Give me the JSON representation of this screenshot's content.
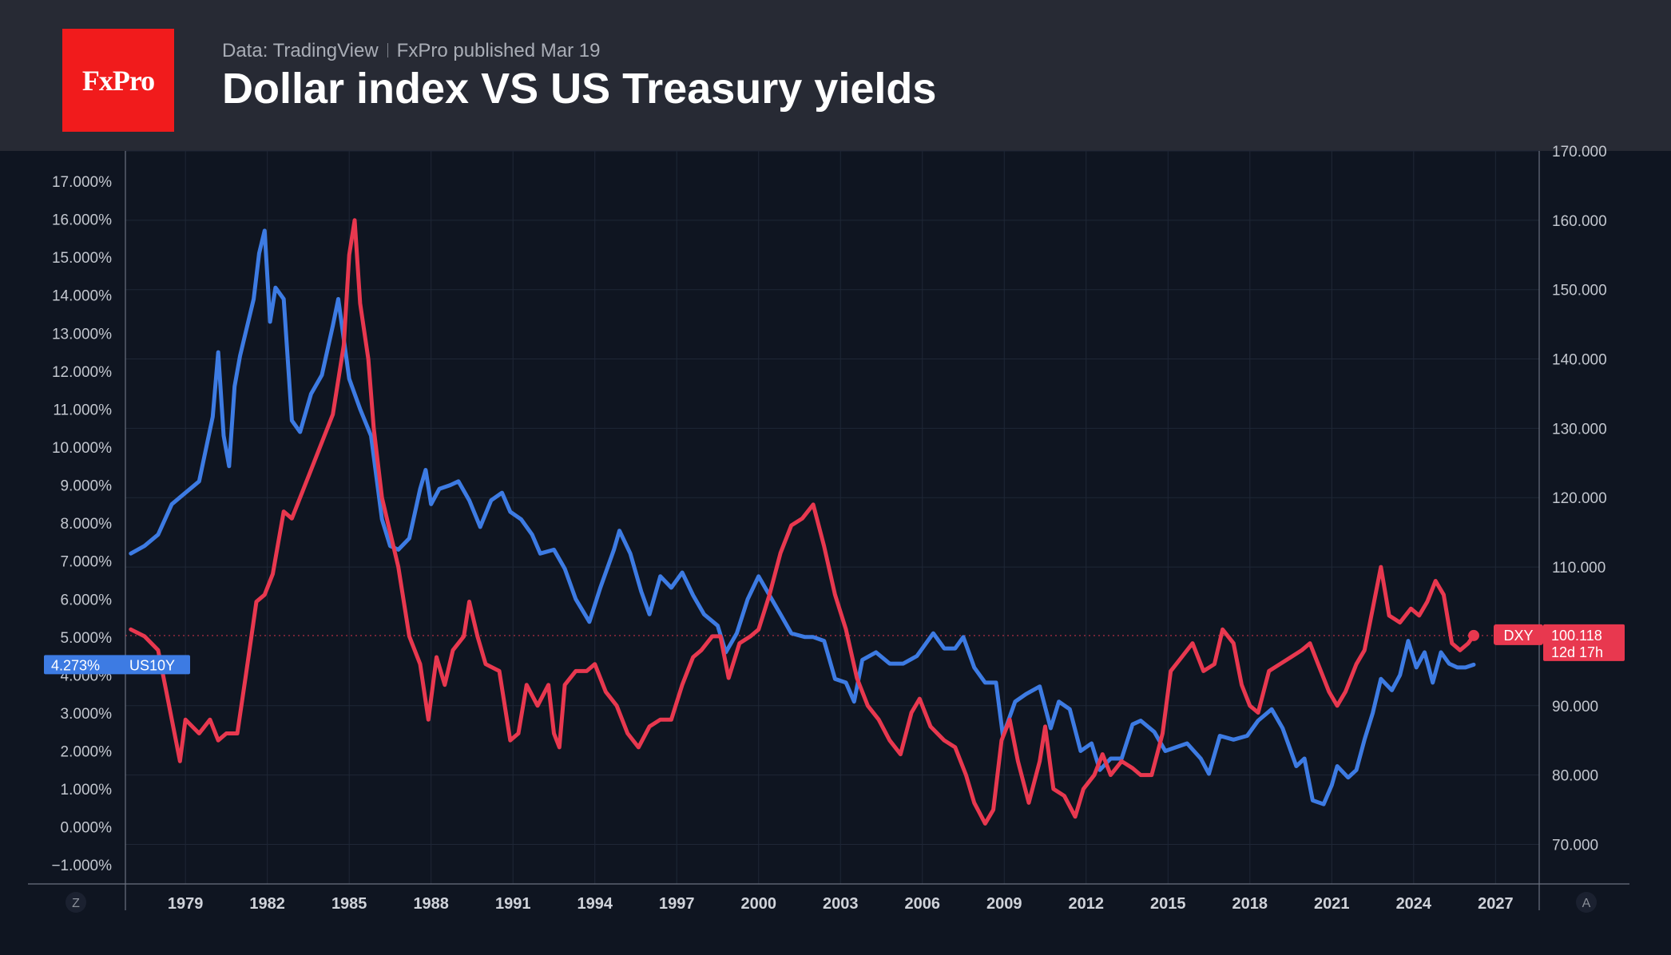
{
  "header": {
    "logo_text": "FxPro",
    "source": "Data: TradingView",
    "published": "FxPro published Mar 19",
    "title": "Dollar index VS US Treasury yields"
  },
  "colors": {
    "background": "#0f1521",
    "header_bg": "#272a34",
    "logo_red": "#f11b1c",
    "us10y_blue": "#3d7be3",
    "dxy_red": "#e8384f"
  },
  "chart_data": {
    "type": "line",
    "x_ticks": [
      "1979",
      "1982",
      "1985",
      "1988",
      "1991",
      "1994",
      "1997",
      "2000",
      "2003",
      "2006",
      "2009",
      "2012",
      "2015",
      "2018",
      "2021",
      "2024",
      "2027"
    ],
    "left_axis": {
      "ticks": [
        "17.000%",
        "16.000%",
        "15.000%",
        "14.000%",
        "13.000%",
        "12.000%",
        "11.000%",
        "10.000%",
        "9.000%",
        "8.000%",
        "7.000%",
        "6.000%",
        "5.000%",
        "4.000%",
        "3.000%",
        "2.000%",
        "1.000%",
        "0.000%",
        "−1.000%"
      ],
      "range": [
        -1.5,
        17.8
      ]
    },
    "right_axis": {
      "ticks": [
        "170.000",
        "160.000",
        "150.000",
        "140.000",
        "130.000",
        "120.000",
        "110.000",
        "90.000",
        "80.000",
        "70.000"
      ],
      "range": [
        64.3,
        170
      ]
    },
    "grid": true,
    "series": [
      {
        "name": "US10Y",
        "axis": "left",
        "color": "#3d7be3",
        "last_label": "4.273%",
        "points": [
          [
            1977.0,
            7.2
          ],
          [
            1977.5,
            7.4
          ],
          [
            1978.0,
            7.7
          ],
          [
            1978.5,
            8.5
          ],
          [
            1979.0,
            8.8
          ],
          [
            1979.5,
            9.1
          ],
          [
            1980.0,
            10.8
          ],
          [
            1980.2,
            12.5
          ],
          [
            1980.4,
            10.3
          ],
          [
            1980.6,
            9.5
          ],
          [
            1980.8,
            11.6
          ],
          [
            1981.0,
            12.4
          ],
          [
            1981.5,
            13.9
          ],
          [
            1981.7,
            15.1
          ],
          [
            1981.9,
            15.7
          ],
          [
            1982.1,
            13.3
          ],
          [
            1982.3,
            14.2
          ],
          [
            1982.6,
            13.9
          ],
          [
            1982.9,
            10.7
          ],
          [
            1983.2,
            10.4
          ],
          [
            1983.6,
            11.4
          ],
          [
            1984.0,
            11.9
          ],
          [
            1984.4,
            13.2
          ],
          [
            1984.6,
            13.9
          ],
          [
            1985.0,
            11.8
          ],
          [
            1985.4,
            11.0
          ],
          [
            1985.8,
            10.3
          ],
          [
            1986.2,
            8.1
          ],
          [
            1986.5,
            7.4
          ],
          [
            1986.8,
            7.3
          ],
          [
            1987.2,
            7.6
          ],
          [
            1987.6,
            8.9
          ],
          [
            1987.8,
            9.4
          ],
          [
            1988.0,
            8.5
          ],
          [
            1988.3,
            8.9
          ],
          [
            1988.7,
            9.0
          ],
          [
            1989.0,
            9.1
          ],
          [
            1989.4,
            8.6
          ],
          [
            1989.8,
            7.9
          ],
          [
            1990.2,
            8.6
          ],
          [
            1990.6,
            8.8
          ],
          [
            1990.9,
            8.3
          ],
          [
            1991.3,
            8.1
          ],
          [
            1991.7,
            7.7
          ],
          [
            1992.0,
            7.2
          ],
          [
            1992.5,
            7.3
          ],
          [
            1992.9,
            6.8
          ],
          [
            1993.3,
            6.0
          ],
          [
            1993.8,
            5.4
          ],
          [
            1994.2,
            6.3
          ],
          [
            1994.7,
            7.3
          ],
          [
            1994.9,
            7.8
          ],
          [
            1995.3,
            7.2
          ],
          [
            1995.7,
            6.2
          ],
          [
            1996.0,
            5.6
          ],
          [
            1996.4,
            6.6
          ],
          [
            1996.8,
            6.3
          ],
          [
            1997.2,
            6.7
          ],
          [
            1997.6,
            6.1
          ],
          [
            1998.0,
            5.6
          ],
          [
            1998.5,
            5.3
          ],
          [
            1998.8,
            4.6
          ],
          [
            1999.2,
            5.1
          ],
          [
            1999.6,
            6.0
          ],
          [
            2000.0,
            6.6
          ],
          [
            2000.4,
            6.1
          ],
          [
            2000.8,
            5.6
          ],
          [
            2001.2,
            5.1
          ],
          [
            2001.7,
            5.0
          ],
          [
            2002.0,
            5.0
          ],
          [
            2002.4,
            4.9
          ],
          [
            2002.8,
            3.9
          ],
          [
            2003.2,
            3.8
          ],
          [
            2003.5,
            3.3
          ],
          [
            2003.8,
            4.4
          ],
          [
            2004.3,
            4.6
          ],
          [
            2004.8,
            4.3
          ],
          [
            2005.3,
            4.3
          ],
          [
            2005.8,
            4.5
          ],
          [
            2006.4,
            5.1
          ],
          [
            2006.8,
            4.7
          ],
          [
            2007.2,
            4.7
          ],
          [
            2007.5,
            5.0
          ],
          [
            2007.9,
            4.2
          ],
          [
            2008.3,
            3.8
          ],
          [
            2008.7,
            3.8
          ],
          [
            2008.95,
            2.4
          ],
          [
            2009.4,
            3.3
          ],
          [
            2009.8,
            3.5
          ],
          [
            2010.3,
            3.7
          ],
          [
            2010.7,
            2.6
          ],
          [
            2011.0,
            3.3
          ],
          [
            2011.4,
            3.1
          ],
          [
            2011.8,
            2.0
          ],
          [
            2012.2,
            2.2
          ],
          [
            2012.5,
            1.5
          ],
          [
            2012.9,
            1.8
          ],
          [
            2013.3,
            1.8
          ],
          [
            2013.7,
            2.7
          ],
          [
            2014.0,
            2.8
          ],
          [
            2014.5,
            2.5
          ],
          [
            2014.9,
            2.0
          ],
          [
            2015.3,
            2.1
          ],
          [
            2015.7,
            2.2
          ],
          [
            2016.2,
            1.8
          ],
          [
            2016.5,
            1.4
          ],
          [
            2016.9,
            2.4
          ],
          [
            2017.4,
            2.3
          ],
          [
            2017.9,
            2.4
          ],
          [
            2018.3,
            2.8
          ],
          [
            2018.8,
            3.1
          ],
          [
            2019.2,
            2.6
          ],
          [
            2019.7,
            1.6
          ],
          [
            2020.0,
            1.8
          ],
          [
            2020.3,
            0.7
          ],
          [
            2020.7,
            0.6
          ],
          [
            2021.0,
            1.1
          ],
          [
            2021.2,
            1.6
          ],
          [
            2021.6,
            1.3
          ],
          [
            2021.9,
            1.5
          ],
          [
            2022.2,
            2.3
          ],
          [
            2022.5,
            3.0
          ],
          [
            2022.8,
            3.9
          ],
          [
            2023.2,
            3.6
          ],
          [
            2023.5,
            4.0
          ],
          [
            2023.8,
            4.9
          ],
          [
            2024.1,
            4.2
          ],
          [
            2024.4,
            4.6
          ],
          [
            2024.7,
            3.8
          ],
          [
            2025.0,
            4.6
          ],
          [
            2025.3,
            4.3
          ],
          [
            2025.6,
            4.2
          ],
          [
            2025.9,
            4.2
          ],
          [
            2026.2,
            4.273
          ]
        ]
      },
      {
        "name": "DXY",
        "axis": "right",
        "color": "#e8384f",
        "last_label": "100.118",
        "countdown": "12d 17h",
        "points": [
          [
            1977.0,
            101.0
          ],
          [
            1977.5,
            100.0
          ],
          [
            1978.0,
            98.0
          ],
          [
            1978.3,
            92.0
          ],
          [
            1978.6,
            86.0
          ],
          [
            1978.8,
            82.0
          ],
          [
            1979.0,
            88.0
          ],
          [
            1979.5,
            86.0
          ],
          [
            1979.9,
            88.0
          ],
          [
            1980.2,
            85.0
          ],
          [
            1980.5,
            86.0
          ],
          [
            1980.9,
            86.0
          ],
          [
            1981.2,
            94.0
          ],
          [
            1981.6,
            105.0
          ],
          [
            1981.9,
            106.0
          ],
          [
            1982.2,
            109.0
          ],
          [
            1982.6,
            118.0
          ],
          [
            1982.9,
            117.0
          ],
          [
            1983.3,
            121.0
          ],
          [
            1983.7,
            125.0
          ],
          [
            1984.0,
            128.0
          ],
          [
            1984.4,
            132.0
          ],
          [
            1984.8,
            142.0
          ],
          [
            1985.0,
            155.0
          ],
          [
            1985.2,
            160.0
          ],
          [
            1985.4,
            148.0
          ],
          [
            1985.7,
            140.0
          ],
          [
            1985.9,
            130.0
          ],
          [
            1986.2,
            120.0
          ],
          [
            1986.5,
            115.0
          ],
          [
            1986.8,
            110.0
          ],
          [
            1987.2,
            100.0
          ],
          [
            1987.6,
            96.0
          ],
          [
            1987.9,
            88.0
          ],
          [
            1988.2,
            97.0
          ],
          [
            1988.5,
            93.0
          ],
          [
            1988.8,
            98.0
          ],
          [
            1989.2,
            100.0
          ],
          [
            1989.4,
            105.0
          ],
          [
            1989.7,
            100.0
          ],
          [
            1990.0,
            96.0
          ],
          [
            1990.5,
            95.0
          ],
          [
            1990.9,
            85.0
          ],
          [
            1991.2,
            86.0
          ],
          [
            1991.5,
            93.0
          ],
          [
            1991.9,
            90.0
          ],
          [
            1992.3,
            93.0
          ],
          [
            1992.5,
            86.0
          ],
          [
            1992.7,
            84.0
          ],
          [
            1992.9,
            93.0
          ],
          [
            1993.3,
            95.0
          ],
          [
            1993.7,
            95.0
          ],
          [
            1994.0,
            96.0
          ],
          [
            1994.4,
            92.0
          ],
          [
            1994.8,
            90.0
          ],
          [
            1995.2,
            86.0
          ],
          [
            1995.6,
            84.0
          ],
          [
            1996.0,
            87.0
          ],
          [
            1996.4,
            88.0
          ],
          [
            1996.8,
            88.0
          ],
          [
            1997.2,
            93.0
          ],
          [
            1997.6,
            97.0
          ],
          [
            1997.9,
            98.0
          ],
          [
            1998.3,
            100.0
          ],
          [
            1998.6,
            100.0
          ],
          [
            1998.9,
            94.0
          ],
          [
            1999.3,
            99.0
          ],
          [
            1999.7,
            100.0
          ],
          [
            2000.0,
            101.0
          ],
          [
            2000.4,
            106.0
          ],
          [
            2000.8,
            112.0
          ],
          [
            2001.2,
            116.0
          ],
          [
            2001.6,
            117.0
          ],
          [
            2002.0,
            119.0
          ],
          [
            2002.4,
            113.0
          ],
          [
            2002.8,
            106.0
          ],
          [
            2003.2,
            101.0
          ],
          [
            2003.6,
            94.0
          ],
          [
            2004.0,
            90.0
          ],
          [
            2004.4,
            88.0
          ],
          [
            2004.8,
            85.0
          ],
          [
            2005.2,
            83.0
          ],
          [
            2005.6,
            89.0
          ],
          [
            2005.9,
            91.0
          ],
          [
            2006.3,
            87.0
          ],
          [
            2006.8,
            85.0
          ],
          [
            2007.2,
            84.0
          ],
          [
            2007.6,
            80.0
          ],
          [
            2007.9,
            76.0
          ],
          [
            2008.3,
            73.0
          ],
          [
            2008.6,
            75.0
          ],
          [
            2008.9,
            85.0
          ],
          [
            2009.2,
            88.0
          ],
          [
            2009.5,
            82.0
          ],
          [
            2009.9,
            76.0
          ],
          [
            2010.3,
            82.0
          ],
          [
            2010.5,
            87.0
          ],
          [
            2010.8,
            78.0
          ],
          [
            2011.2,
            77.0
          ],
          [
            2011.6,
            74.0
          ],
          [
            2011.9,
            78.0
          ],
          [
            2012.3,
            80.0
          ],
          [
            2012.6,
            83.0
          ],
          [
            2012.9,
            80.0
          ],
          [
            2013.3,
            82.0
          ],
          [
            2013.7,
            81.0
          ],
          [
            2014.0,
            80.0
          ],
          [
            2014.4,
            80.0
          ],
          [
            2014.8,
            86.0
          ],
          [
            2015.1,
            95.0
          ],
          [
            2015.5,
            97.0
          ],
          [
            2015.9,
            99.0
          ],
          [
            2016.3,
            95.0
          ],
          [
            2016.7,
            96.0
          ],
          [
            2017.0,
            101.0
          ],
          [
            2017.4,
            99.0
          ],
          [
            2017.7,
            93.0
          ],
          [
            2018.0,
            90.0
          ],
          [
            2018.3,
            89.0
          ],
          [
            2018.7,
            95.0
          ],
          [
            2019.1,
            96.0
          ],
          [
            2019.5,
            97.0
          ],
          [
            2019.9,
            98.0
          ],
          [
            2020.2,
            99.0
          ],
          [
            2020.5,
            96.0
          ],
          [
            2020.9,
            92.0
          ],
          [
            2021.2,
            90.0
          ],
          [
            2021.5,
            92.0
          ],
          [
            2021.9,
            96.0
          ],
          [
            2022.2,
            98.0
          ],
          [
            2022.5,
            104.0
          ],
          [
            2022.8,
            110.0
          ],
          [
            2023.1,
            103.0
          ],
          [
            2023.5,
            102.0
          ],
          [
            2023.9,
            104.0
          ],
          [
            2024.2,
            103.0
          ],
          [
            2024.5,
            105.0
          ],
          [
            2024.8,
            108.0
          ],
          [
            2025.1,
            106.0
          ],
          [
            2025.4,
            99.0
          ],
          [
            2025.7,
            98.0
          ],
          [
            2026.0,
            99.0
          ],
          [
            2026.2,
            100.118
          ]
        ]
      }
    ],
    "price_line": {
      "axis": "right",
      "value": 100.118
    }
  },
  "corners": {
    "left": "Z",
    "right": "A"
  }
}
